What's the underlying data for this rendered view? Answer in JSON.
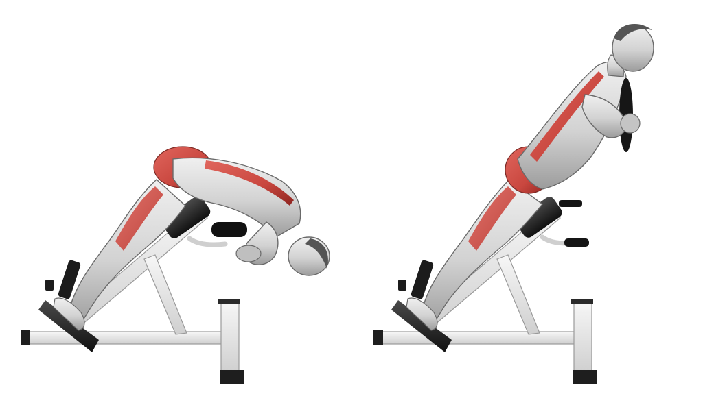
{
  "image": {
    "kind": "exercise-illustration",
    "panels": [
      {
        "pose": "start-position",
        "equipment": "hyperextension-bench"
      },
      {
        "pose": "end-position",
        "equipment": "hyperextension-bench",
        "holding": "weight-plate"
      }
    ]
  },
  "colors": {
    "background": "#ffffff",
    "frame": "#e6e6e6",
    "frame_edge": "#9a9a9a",
    "pad": "#2a2a2a",
    "pad_dark": "#141414",
    "skin": "#dcdcdc",
    "skin_shadow": "#a9a9a9",
    "skin_outline": "#6a6a6a",
    "muscle_highlight": "#c9473f",
    "muscle_highlight_dark": "#9e2a24",
    "hair": "#555555"
  }
}
